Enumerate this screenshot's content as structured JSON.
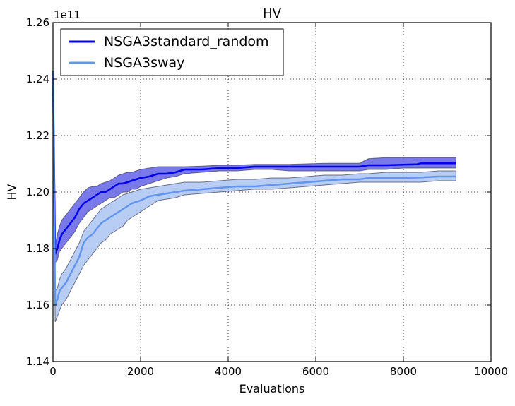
{
  "chart_data": {
    "type": "line",
    "title": "HV",
    "xlabel": "Evaluations",
    "ylabel": "HV",
    "y_offset_label": "1e11",
    "y_scale_factor": 100000000000,
    "xlim": [
      0,
      10000
    ],
    "ylim": [
      1.14,
      1.26
    ],
    "x_ticks": [
      0,
      2000,
      4000,
      6000,
      8000,
      10000
    ],
    "x_tick_labels": [
      "0",
      "2000",
      "4000",
      "6000",
      "8000",
      "10000"
    ],
    "y_ticks": [
      1.14,
      1.16,
      1.18,
      1.2,
      1.22,
      1.24,
      1.26
    ],
    "y_tick_labels": [
      "1.14",
      "1.16",
      "1.18",
      "1.20",
      "1.22",
      "1.24",
      "1.26"
    ],
    "grid": true,
    "legend_position": "upper-left",
    "series": [
      {
        "name": "NSGA3standard_random",
        "color": "#0000ee",
        "band_color": "#6a6ae8",
        "x": [
          0,
          50,
          100,
          150,
          200,
          300,
          400,
          500,
          600,
          700,
          800,
          900,
          1000,
          1100,
          1200,
          1300,
          1400,
          1500,
          1600,
          1700,
          1800,
          1900,
          2000,
          2200,
          2400,
          2600,
          2800,
          3000,
          3400,
          3800,
          4200,
          4600,
          5000,
          5400,
          5800,
          6200,
          6600,
          7000,
          7200,
          7600,
          8000,
          8300,
          8400,
          8800,
          9200
        ],
        "mean": [
          1.243,
          1.178,
          1.18,
          1.183,
          1.185,
          1.187,
          1.189,
          1.191,
          1.194,
          1.196,
          1.197,
          1.198,
          1.199,
          1.2,
          1.2,
          1.201,
          1.202,
          1.203,
          1.203,
          1.2035,
          1.204,
          1.2045,
          1.205,
          1.2055,
          1.2065,
          1.2065,
          1.207,
          1.208,
          1.208,
          1.2085,
          1.2085,
          1.209,
          1.209,
          1.209,
          1.209,
          1.209,
          1.209,
          1.209,
          1.2095,
          1.2095,
          1.2097,
          1.2098,
          1.2102,
          1.2102,
          1.2102
        ],
        "lower": [
          1.243,
          1.175,
          1.176,
          1.179,
          1.18,
          1.182,
          1.184,
          1.186,
          1.189,
          1.191,
          1.193,
          1.194,
          1.195,
          1.196,
          1.197,
          1.198,
          1.198,
          1.199,
          1.2,
          1.2,
          1.201,
          1.201,
          1.202,
          1.203,
          1.204,
          1.205,
          1.2055,
          1.2065,
          1.207,
          1.2075,
          1.2075,
          1.208,
          1.208,
          1.2075,
          1.2075,
          1.2075,
          1.2075,
          1.2075,
          1.208,
          1.208,
          1.2085,
          1.2085,
          1.2085,
          1.2085,
          1.2085
        ],
        "upper": [
          1.243,
          1.181,
          1.185,
          1.188,
          1.19,
          1.192,
          1.194,
          1.196,
          1.198,
          1.2,
          1.2015,
          1.202,
          1.202,
          1.203,
          1.2035,
          1.204,
          1.205,
          1.206,
          1.2065,
          1.207,
          1.207,
          1.2075,
          1.208,
          1.2085,
          1.209,
          1.209,
          1.209,
          1.209,
          1.2092,
          1.2095,
          1.2095,
          1.2098,
          1.2098,
          1.2098,
          1.21,
          1.2102,
          1.2102,
          1.2102,
          1.2118,
          1.2122,
          1.2122,
          1.2122,
          1.2122,
          1.2122,
          1.2122
        ]
      },
      {
        "name": "NSGA3sway",
        "color": "#6495ed",
        "band_color": "#b0c8f2",
        "x": [
          0,
          50,
          100,
          150,
          200,
          300,
          400,
          500,
          600,
          700,
          800,
          900,
          1000,
          1100,
          1200,
          1300,
          1400,
          1500,
          1600,
          1700,
          1800,
          1900,
          2000,
          2200,
          2400,
          2600,
          2800,
          3000,
          3400,
          3800,
          4200,
          4600,
          5000,
          5400,
          5800,
          6200,
          6600,
          7000,
          7200,
          7600,
          8000,
          8400,
          8800,
          9200
        ],
        "mean": [
          1.243,
          1.16,
          1.162,
          1.165,
          1.166,
          1.168,
          1.171,
          1.174,
          1.177,
          1.182,
          1.184,
          1.185,
          1.187,
          1.189,
          1.19,
          1.191,
          1.192,
          1.193,
          1.194,
          1.195,
          1.196,
          1.1965,
          1.197,
          1.1985,
          1.199,
          1.1995,
          1.2,
          1.2005,
          1.201,
          1.2015,
          1.202,
          1.202,
          1.2025,
          1.203,
          1.2035,
          1.204,
          1.2045,
          1.2045,
          1.205,
          1.205,
          1.205,
          1.2052,
          1.2055,
          1.2055
        ],
        "lower": [
          1.243,
          1.154,
          1.156,
          1.158,
          1.16,
          1.162,
          1.165,
          1.168,
          1.171,
          1.174,
          1.176,
          1.178,
          1.18,
          1.182,
          1.183,
          1.185,
          1.186,
          1.187,
          1.188,
          1.19,
          1.191,
          1.192,
          1.193,
          1.195,
          1.197,
          1.1975,
          1.198,
          1.199,
          1.1995,
          1.2,
          1.2005,
          1.201,
          1.201,
          1.2015,
          1.202,
          1.2025,
          1.203,
          1.2035,
          1.2035,
          1.2035,
          1.2035,
          1.2035,
          1.204,
          1.204
        ],
        "upper": [
          1.243,
          1.165,
          1.166,
          1.169,
          1.171,
          1.173,
          1.176,
          1.179,
          1.182,
          1.186,
          1.188,
          1.19,
          1.192,
          1.194,
          1.195,
          1.196,
          1.197,
          1.198,
          1.199,
          1.1995,
          1.2,
          1.2005,
          1.201,
          1.2015,
          1.202,
          1.2025,
          1.203,
          1.2035,
          1.2035,
          1.204,
          1.2045,
          1.2045,
          1.205,
          1.205,
          1.2055,
          1.206,
          1.206,
          1.2065,
          1.2065,
          1.207,
          1.207,
          1.207,
          1.2075,
          1.2075
        ]
      }
    ]
  }
}
